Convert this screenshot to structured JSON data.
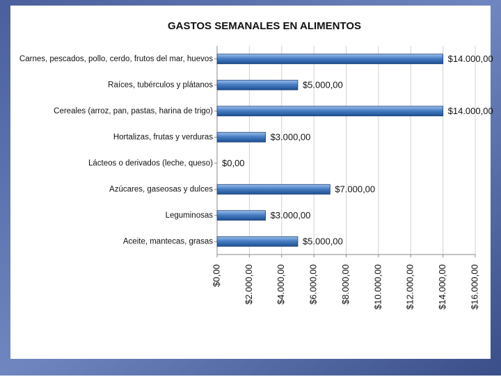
{
  "chart_data": {
    "type": "bar",
    "orientation": "horizontal",
    "title": "GASTOS  SEMANALES EN ALIMENTOS",
    "categories": [
      "Carnes, pescados, pollo, cerdo, frutos del mar, huevos",
      "Raíces, tubérculos y plátanos",
      "Cereales (arroz, pan, pastas, harina de trigo)",
      "Hortalizas, frutas y verduras",
      "Lácteos o derivados (leche, queso)",
      "Azúcares, gaseosas y dulces",
      "Leguminosas",
      "Aceite, mantecas, grasas"
    ],
    "values": [
      14000,
      5000,
      14000,
      3000,
      0,
      7000,
      3000,
      5000
    ],
    "value_labels": [
      "$14.000,00",
      "$5.000,00",
      "$14.000,00",
      "$3.000,00",
      "$0,00",
      "$7.000,00",
      "$3.000,00",
      "$5.000,00"
    ],
    "color": "#4a7fc4",
    "xlim": [
      0,
      16000
    ],
    "xticks": [
      {
        "value": 0,
        "label": "$0,00"
      },
      {
        "value": 2000,
        "label": "$2.000,00"
      },
      {
        "value": 4000,
        "label": "$4.000,00"
      },
      {
        "value": 6000,
        "label": "$6.000,00"
      },
      {
        "value": 8000,
        "label": "$8.000,00"
      },
      {
        "value": 10000,
        "label": "$10.000,00"
      },
      {
        "value": 12000,
        "label": "$12.000,00"
      },
      {
        "value": 14000,
        "label": "$14.000,00"
      },
      {
        "value": 16000,
        "label": "$16.000,00"
      }
    ],
    "grid": true
  }
}
